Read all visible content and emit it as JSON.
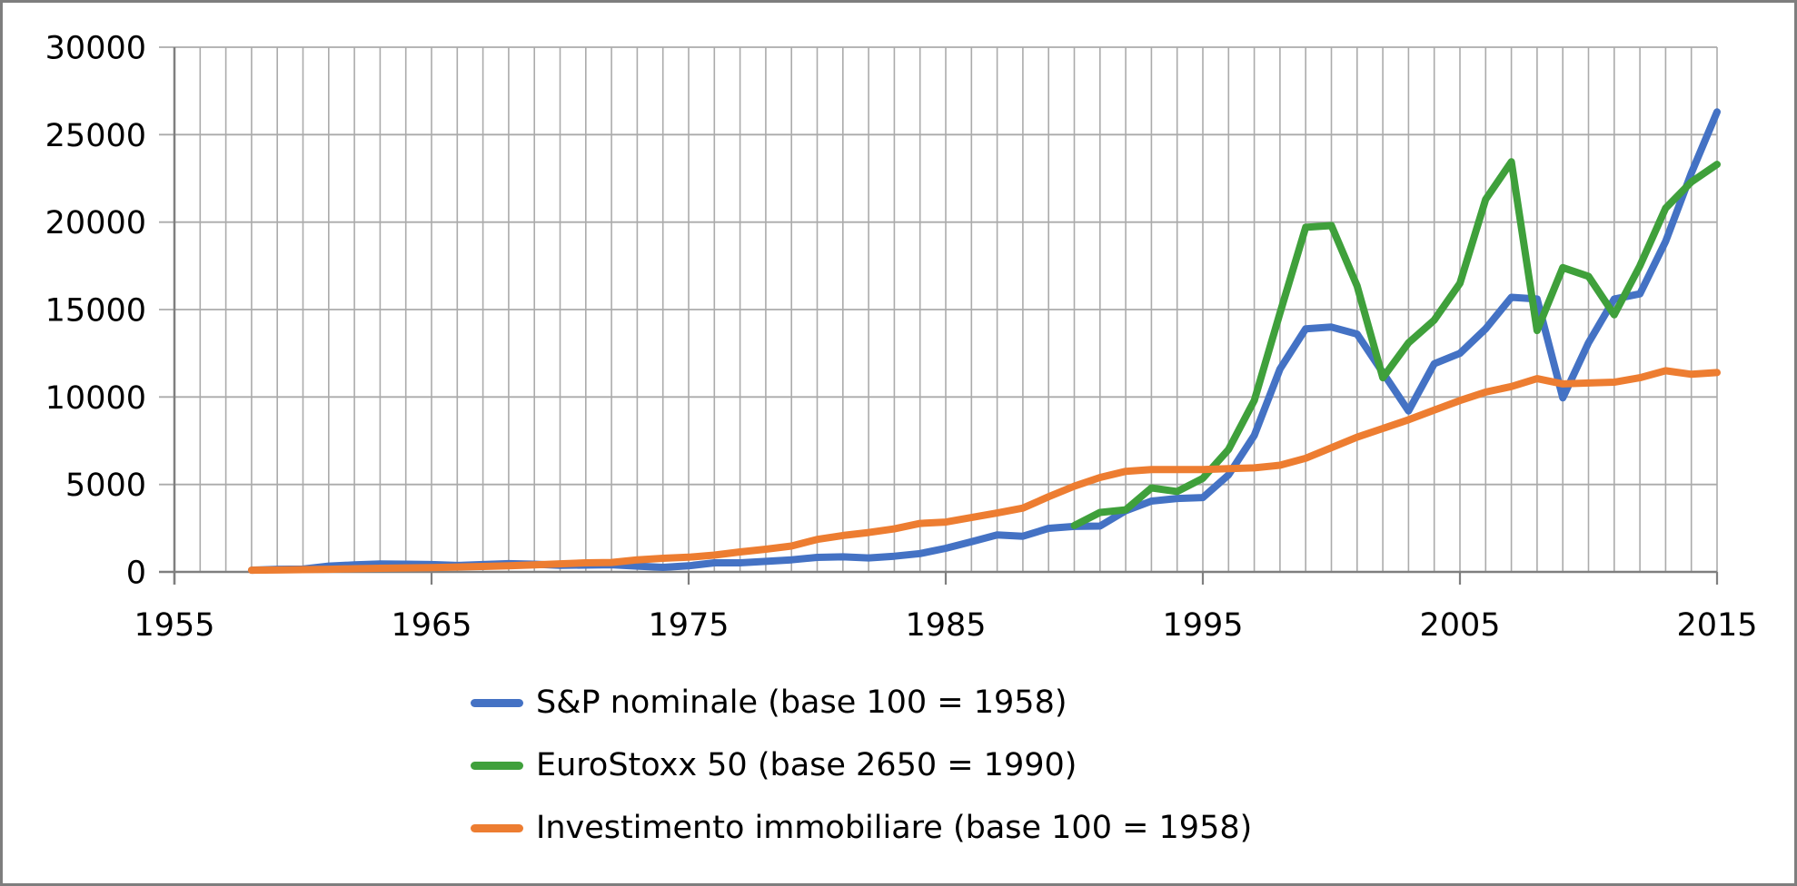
{
  "chart_data": {
    "type": "line",
    "title": "",
    "xlabel": "",
    "ylabel": "",
    "xlim": [
      1955,
      2015
    ],
    "ylim": [
      0,
      30000
    ],
    "x_ticks": [
      1955,
      1965,
      1975,
      1985,
      1995,
      2005,
      2015
    ],
    "y_ticks": [
      0,
      5000,
      10000,
      15000,
      20000,
      25000,
      30000
    ],
    "grid": {
      "vertical_every": 1,
      "horizontal_every": 5000,
      "visible": true
    },
    "legend_position": "bottom",
    "x_frequency": "annual",
    "series": [
      {
        "name": "S&P nominale (base 100 = 1958)",
        "color": "#4472C4",
        "start_year": 1958,
        "values": [
          100,
          150,
          160,
          330,
          400,
          450,
          440,
          420,
          370,
          420,
          470,
          440,
          380,
          390,
          410,
          330,
          260,
          350,
          520,
          520,
          600,
          690,
          830,
          860,
          800,
          900,
          1050,
          1350,
          1730,
          2120,
          2040,
          2490,
          2600,
          2620,
          3500,
          4050,
          4200,
          4250,
          5550,
          7800,
          11600,
          13900,
          14000,
          13600,
          11400,
          9200,
          11900,
          12500,
          13900,
          15700,
          15600,
          9950,
          13100,
          15600,
          15900,
          18900,
          22800,
          26300
        ]
      },
      {
        "name": "EuroStoxx 50 (base 2650 = 1990)",
        "color": "#3FA03B",
        "start_year": 1990,
        "values": [
          2650,
          3400,
          3550,
          4800,
          4600,
          5350,
          7000,
          9800,
          14800,
          19700,
          19800,
          16350,
          11100,
          13100,
          14400,
          16500,
          21300,
          23450,
          13800,
          17400,
          16900,
          14700,
          17500,
          20800,
          22300,
          23300
        ]
      },
      {
        "name": "Investimento immobiliare (base 100 = 1958)",
        "color": "#ED7D31",
        "start_year": 1958,
        "values": [
          100,
          110,
          130,
          150,
          180,
          210,
          230,
          250,
          280,
          310,
          350,
          400,
          460,
          520,
          540,
          690,
          780,
          840,
          960,
          1140,
          1300,
          1480,
          1860,
          2080,
          2250,
          2460,
          2770,
          2850,
          3110,
          3370,
          3650,
          4300,
          4900,
          5400,
          5750,
          5850,
          5850,
          5850,
          5900,
          5950,
          6100,
          6500,
          7100,
          7700,
          8200,
          8700,
          9250,
          9800,
          10280,
          10600,
          11050,
          10750,
          10800,
          10850,
          11100,
          11500,
          11300,
          11400
        ]
      }
    ],
    "style": {
      "line_width": 8,
      "grid_color": "#ABABAB",
      "axis_color": "#7F7F7F",
      "text_color": "#000000",
      "background": "#FFFFFF",
      "border_color": "#7E7E7E"
    }
  }
}
